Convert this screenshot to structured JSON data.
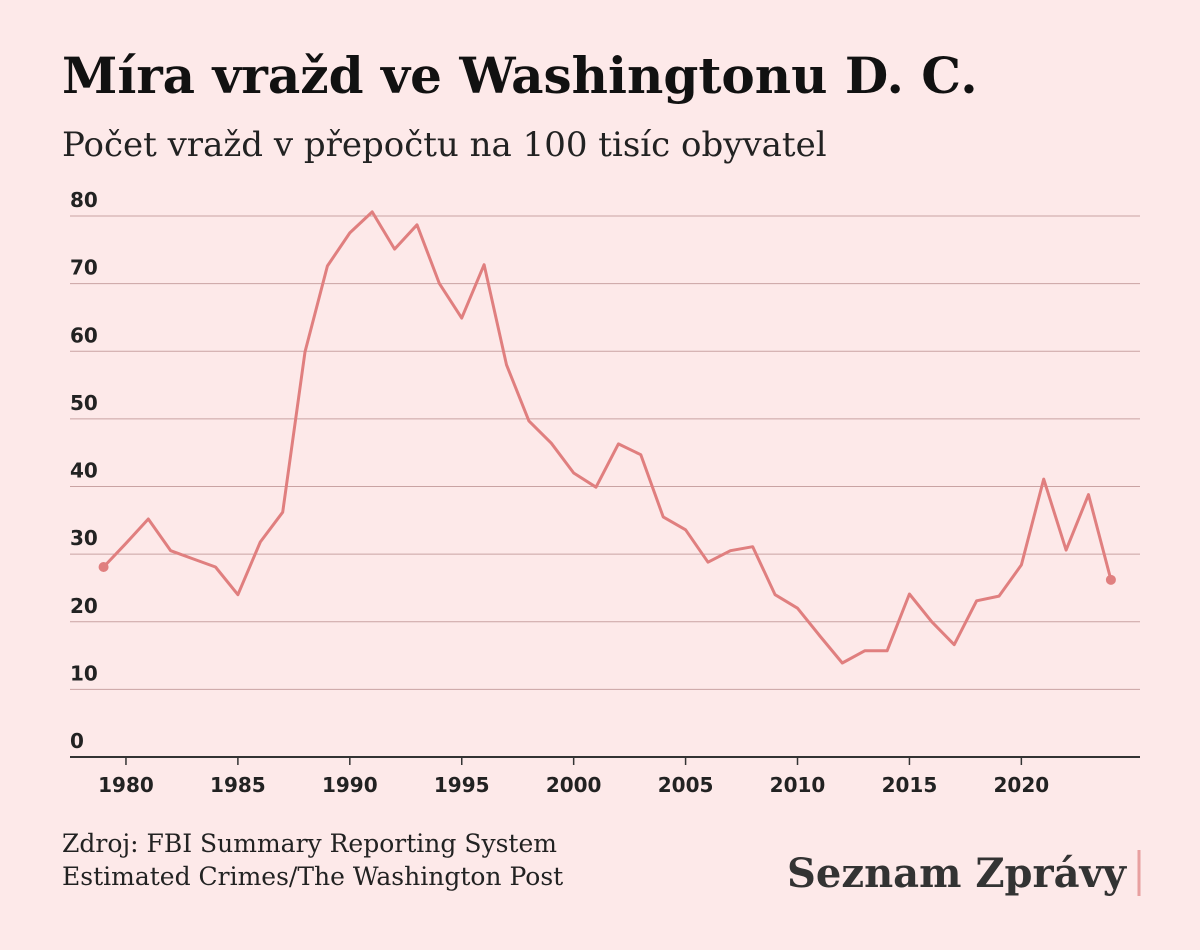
{
  "chart_data": {
    "type": "line",
    "title": "Míra vražd ve Washingtonu D. C.",
    "subtitle": "Počet vražd v přepočtu na 100 tisíc obyvatel",
    "x": [
      1979,
      1980,
      1981,
      1982,
      1983,
      1984,
      1985,
      1986,
      1987,
      1988,
      1989,
      1990,
      1991,
      1992,
      1993,
      1994,
      1995,
      1996,
      1997,
      1998,
      1999,
      2000,
      2001,
      2002,
      2003,
      2004,
      2005,
      2006,
      2007,
      2008,
      2009,
      2010,
      2011,
      2012,
      2013,
      2014,
      2015,
      2016,
      2017,
      2018,
      2019,
      2020,
      2021,
      2022,
      2023,
      2024
    ],
    "values": [
      28.1,
      31.6,
      35.2,
      30.5,
      29.3,
      28.1,
      24.0,
      31.8,
      36.2,
      59.9,
      72.6,
      77.5,
      80.6,
      75.1,
      78.7,
      70.0,
      64.9,
      72.8,
      58.0,
      49.7,
      46.4,
      42.0,
      39.9,
      46.3,
      44.7,
      35.5,
      33.6,
      28.8,
      30.5,
      31.1,
      24.0,
      22.0,
      17.9,
      13.9,
      15.7,
      15.7,
      24.1,
      20.0,
      16.6,
      23.1,
      23.8,
      28.4,
      41.1,
      30.6,
      38.8,
      26.2
    ],
    "color": "#e07f7f",
    "xlim": [
      1977.5,
      2025.3
    ],
    "xticks": [
      1980,
      1985,
      1990,
      1995,
      2000,
      2005,
      2010,
      2015,
      2020
    ],
    "ylim": [
      0,
      80
    ],
    "yticks": [
      0,
      10,
      20,
      30,
      40,
      50,
      60,
      70,
      80
    ],
    "grid": true,
    "source": [
      "Zdroj: FBI Summary Reporting System",
      "Estimated Crimes/The Washington Post"
    ],
    "brand": "Seznam Zprávy"
  }
}
